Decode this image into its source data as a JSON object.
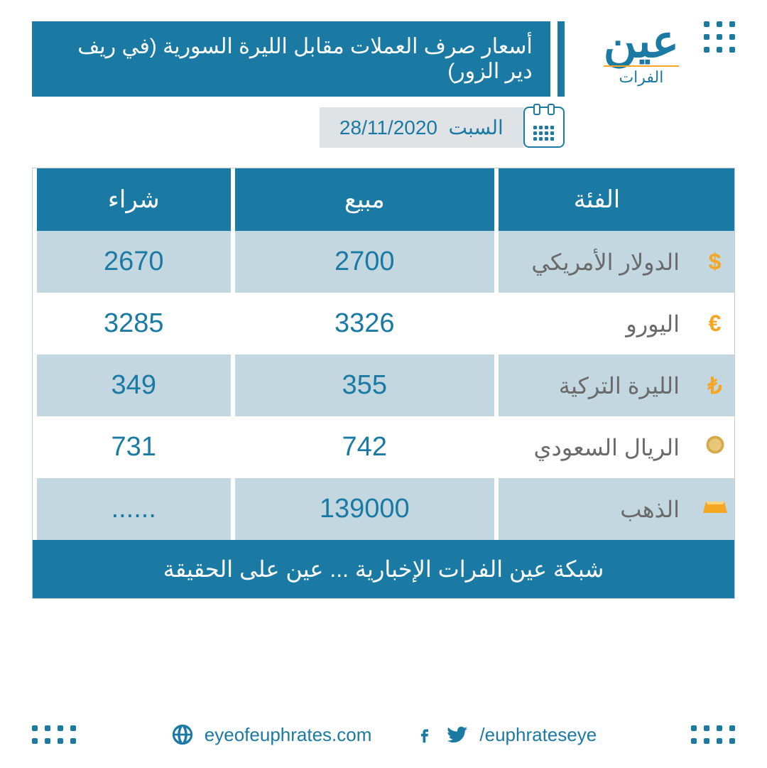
{
  "logo": {
    "main": "عين",
    "sub": "الفرات"
  },
  "title": "أسعار صرف العملات مقابل الليرة السورية (في ريف دير الزور)",
  "date": {
    "day": "السبت",
    "value": "28/11/2020"
  },
  "headers": {
    "category": "الفئة",
    "sell": "مبيع",
    "buy": "شراء"
  },
  "rows": [
    {
      "name": "الدولار الأمريكي",
      "sell": "2700",
      "buy": "2670",
      "icon": "dollar",
      "icon_color": "#f5a623"
    },
    {
      "name": "اليورو",
      "sell": "3326",
      "buy": "3285",
      "icon": "euro",
      "icon_color": "#f5a623"
    },
    {
      "name": "الليرة التركية",
      "sell": "355",
      "buy": "349",
      "icon": "lira",
      "icon_color": "#f5a623"
    },
    {
      "name": "الريال السعودي",
      "sell": "742",
      "buy": "731",
      "icon": "riyal",
      "icon_color": "#d4a84b"
    },
    {
      "name": "الذهب",
      "sell": "139000",
      "buy": "......",
      "icon": "gold",
      "icon_color": "#f5a623"
    }
  ],
  "footer_slogan": "شبكة عين الفرات الإخبارية ... عين على الحقيقة",
  "website": "eyeofeuphrates.com",
  "social": "/euphrateseye",
  "colors": {
    "primary": "#1a7aa3",
    "row_alt": "#c2d7e0",
    "text_muted": "#6a6a6a",
    "date_bg": "#e0e3e5",
    "accent": "#f5a623"
  }
}
